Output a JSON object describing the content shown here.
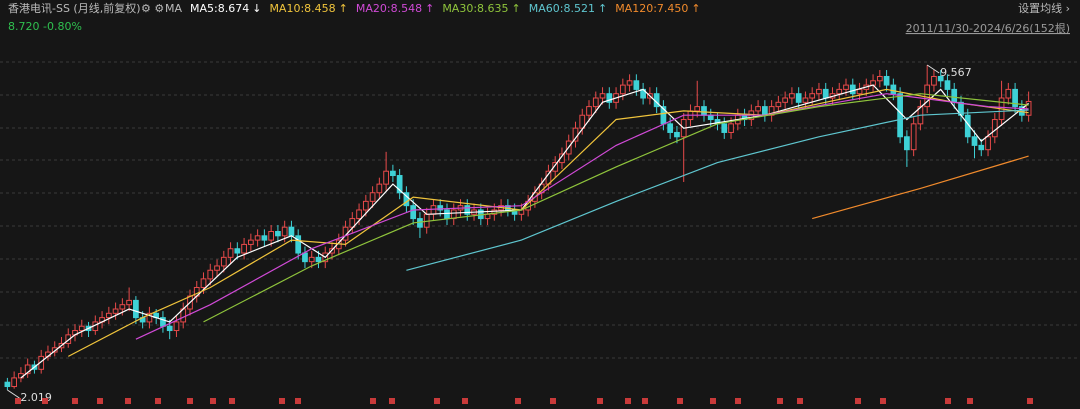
{
  "chart_data": {
    "type": "candlestick",
    "title": "香港电讯-SS (月线,前复权)",
    "indicator": "MA",
    "quote": "8.720 -0.80%",
    "range_text": "2011/11/30-2024/6/26(152根)",
    "settings_text": "设置均线 ›",
    "ylim": [
      1.578,
      11.076
    ],
    "annotations": [
      {
        "text": "9.567",
        "index": 136,
        "value": 9.567
      },
      {
        "text": "2.019",
        "index": 0,
        "value": 2.019
      }
    ],
    "up_color": "#e84a4a",
    "down_color": "#3ed1d6",
    "candles": [
      [
        2.2,
        2.3,
        2.019,
        2.1
      ],
      [
        2.1,
        2.45,
        2.05,
        2.3
      ],
      [
        2.3,
        2.55,
        2.2,
        2.4
      ],
      [
        2.4,
        2.75,
        2.3,
        2.6
      ],
      [
        2.6,
        2.7,
        2.4,
        2.5
      ],
      [
        2.5,
        2.95,
        2.4,
        2.8
      ],
      [
        2.8,
        3.05,
        2.7,
        2.9
      ],
      [
        2.9,
        3.15,
        2.8,
        3.0
      ],
      [
        3.0,
        3.25,
        2.9,
        3.1
      ],
      [
        3.1,
        3.45,
        3.0,
        3.3
      ],
      [
        3.3,
        3.55,
        3.15,
        3.4
      ],
      [
        3.4,
        3.65,
        3.25,
        3.5
      ],
      [
        3.5,
        3.6,
        3.25,
        3.4
      ],
      [
        3.4,
        3.75,
        3.3,
        3.6
      ],
      [
        3.6,
        3.85,
        3.45,
        3.7
      ],
      [
        3.7,
        3.95,
        3.55,
        3.8
      ],
      [
        3.8,
        4.05,
        3.65,
        3.9
      ],
      [
        3.9,
        4.15,
        3.75,
        4.0
      ],
      [
        4.0,
        4.4,
        3.85,
        4.1
      ],
      [
        4.1,
        4.2,
        3.55,
        3.7
      ],
      [
        3.7,
        3.85,
        3.45,
        3.6
      ],
      [
        3.6,
        3.95,
        3.45,
        3.8
      ],
      [
        3.8,
        3.9,
        3.55,
        3.7
      ],
      [
        3.7,
        3.85,
        3.35,
        3.5
      ],
      [
        3.5,
        3.65,
        3.2,
        3.4
      ],
      [
        3.4,
        3.75,
        3.25,
        3.6
      ],
      [
        3.6,
        4.05,
        3.45,
        3.9
      ],
      [
        3.9,
        4.35,
        3.75,
        4.2
      ],
      [
        4.2,
        4.55,
        4.05,
        4.4
      ],
      [
        4.4,
        4.75,
        4.25,
        4.6
      ],
      [
        4.6,
        4.95,
        4.45,
        4.8
      ],
      [
        4.8,
        5.05,
        4.65,
        4.9
      ],
      [
        4.9,
        5.25,
        4.75,
        5.1
      ],
      [
        5.1,
        5.45,
        4.95,
        5.3
      ],
      [
        5.3,
        5.45,
        5.05,
        5.2
      ],
      [
        5.2,
        5.55,
        5.05,
        5.4
      ],
      [
        5.4,
        5.65,
        5.25,
        5.5
      ],
      [
        5.5,
        5.75,
        5.35,
        5.6
      ],
      [
        5.6,
        5.75,
        5.35,
        5.5
      ],
      [
        5.5,
        5.85,
        5.35,
        5.7
      ],
      [
        5.7,
        5.85,
        5.45,
        5.6
      ],
      [
        5.6,
        5.95,
        5.45,
        5.8
      ],
      [
        5.8,
        5.95,
        5.45,
        5.6
      ],
      [
        5.6,
        5.75,
        5.05,
        5.2
      ],
      [
        5.2,
        5.35,
        4.85,
        5.0
      ],
      [
        5.0,
        5.25,
        4.85,
        5.1
      ],
      [
        5.1,
        5.25,
        4.85,
        5.0
      ],
      [
        5.0,
        5.35,
        4.85,
        5.2
      ],
      [
        5.2,
        5.45,
        5.05,
        5.3
      ],
      [
        5.3,
        5.65,
        5.15,
        5.5
      ],
      [
        5.5,
        5.95,
        5.35,
        5.8
      ],
      [
        5.8,
        6.15,
        5.65,
        6.0
      ],
      [
        6.0,
        6.35,
        5.85,
        6.2
      ],
      [
        6.2,
        6.55,
        6.05,
        6.4
      ],
      [
        6.4,
        6.75,
        6.25,
        6.6
      ],
      [
        6.6,
        6.95,
        6.45,
        6.8
      ],
      [
        6.8,
        7.55,
        6.65,
        7.1
      ],
      [
        7.1,
        7.25,
        6.85,
        7.0
      ],
      [
        7.0,
        7.15,
        6.45,
        6.6
      ],
      [
        6.6,
        6.75,
        6.15,
        6.3
      ],
      [
        6.3,
        6.45,
        5.85,
        6.0
      ],
      [
        6.0,
        6.15,
        5.55,
        5.8
      ],
      [
        5.8,
        6.25,
        5.65,
        6.1
      ],
      [
        6.1,
        6.45,
        5.95,
        6.3
      ],
      [
        6.3,
        6.45,
        6.05,
        6.2
      ],
      [
        6.2,
        6.35,
        5.85,
        6.0
      ],
      [
        6.0,
        6.35,
        5.85,
        6.2
      ],
      [
        6.2,
        6.45,
        6.05,
        6.3
      ],
      [
        6.3,
        6.45,
        5.95,
        6.1
      ],
      [
        6.1,
        6.35,
        5.95,
        6.2
      ],
      [
        6.2,
        6.35,
        5.85,
        6.0
      ],
      [
        6.0,
        6.25,
        5.85,
        6.1
      ],
      [
        6.1,
        6.35,
        5.95,
        6.2
      ],
      [
        6.2,
        6.45,
        6.05,
        6.3
      ],
      [
        6.3,
        6.45,
        6.05,
        6.2
      ],
      [
        6.2,
        6.35,
        5.95,
        6.1
      ],
      [
        6.1,
        6.35,
        5.95,
        6.2
      ],
      [
        6.2,
        6.55,
        6.05,
        6.4
      ],
      [
        6.4,
        6.75,
        6.25,
        6.6
      ],
      [
        6.6,
        6.95,
        6.45,
        6.8
      ],
      [
        6.8,
        7.25,
        6.65,
        7.1
      ],
      [
        7.1,
        7.45,
        6.95,
        7.3
      ],
      [
        7.3,
        7.65,
        7.15,
        7.5
      ],
      [
        7.5,
        7.95,
        7.35,
        7.8
      ],
      [
        7.8,
        8.25,
        7.65,
        8.1
      ],
      [
        8.1,
        8.55,
        7.95,
        8.4
      ],
      [
        8.4,
        8.75,
        8.25,
        8.6
      ],
      [
        8.6,
        8.95,
        8.45,
        8.8
      ],
      [
        8.8,
        9.05,
        8.65,
        8.9
      ],
      [
        8.9,
        9.05,
        8.55,
        8.7
      ],
      [
        8.7,
        9.05,
        8.55,
        8.9
      ],
      [
        8.9,
        9.25,
        8.75,
        9.1
      ],
      [
        9.1,
        9.35,
        8.95,
        9.2
      ],
      [
        9.2,
        9.35,
        8.85,
        9.0
      ],
      [
        9.0,
        9.15,
        8.65,
        8.8
      ],
      [
        8.8,
        9.05,
        8.65,
        8.9
      ],
      [
        8.9,
        9.05,
        8.45,
        8.6
      ],
      [
        8.6,
        8.75,
        8.05,
        8.2
      ],
      [
        8.2,
        8.35,
        7.85,
        8.0
      ],
      [
        8.0,
        8.15,
        7.75,
        7.9
      ],
      [
        7.9,
        8.45,
        6.85,
        8.3
      ],
      [
        8.3,
        8.65,
        8.15,
        8.5
      ],
      [
        8.5,
        9.2,
        8.35,
        8.6
      ],
      [
        8.6,
        8.75,
        8.25,
        8.4
      ],
      [
        8.4,
        8.55,
        8.15,
        8.3
      ],
      [
        8.3,
        8.45,
        8.05,
        8.2
      ],
      [
        8.2,
        8.35,
        7.85,
        8.0
      ],
      [
        8.0,
        8.35,
        7.85,
        8.2
      ],
      [
        8.2,
        8.55,
        8.05,
        8.4
      ],
      [
        8.4,
        8.55,
        8.15,
        8.3
      ],
      [
        8.3,
        8.65,
        8.15,
        8.5
      ],
      [
        8.5,
        8.75,
        8.35,
        8.6
      ],
      [
        8.6,
        8.75,
        8.25,
        8.4
      ],
      [
        8.4,
        8.75,
        8.25,
        8.6
      ],
      [
        8.6,
        8.85,
        8.45,
        8.7
      ],
      [
        8.7,
        8.95,
        8.55,
        8.8
      ],
      [
        8.8,
        9.05,
        8.65,
        8.9
      ],
      [
        8.9,
        9.05,
        8.55,
        8.7
      ],
      [
        8.7,
        8.95,
        8.55,
        8.8
      ],
      [
        8.8,
        9.05,
        8.65,
        8.9
      ],
      [
        8.9,
        9.15,
        8.75,
        9.0
      ],
      [
        9.0,
        9.15,
        8.65,
        8.8
      ],
      [
        8.8,
        9.05,
        8.65,
        8.9
      ],
      [
        8.9,
        9.15,
        8.75,
        9.0
      ],
      [
        9.0,
        9.25,
        8.85,
        9.1
      ],
      [
        9.1,
        9.25,
        8.75,
        8.9
      ],
      [
        8.9,
        9.15,
        8.75,
        9.0
      ],
      [
        9.0,
        9.25,
        8.85,
        9.1
      ],
      [
        9.1,
        9.35,
        8.95,
        9.2
      ],
      [
        9.2,
        9.45,
        9.05,
        9.3
      ],
      [
        9.3,
        9.45,
        8.95,
        9.1
      ],
      [
        9.1,
        9.25,
        8.75,
        8.9
      ],
      [
        8.9,
        9.05,
        7.75,
        7.9
      ],
      [
        7.9,
        8.05,
        7.2,
        7.6
      ],
      [
        7.6,
        8.35,
        7.45,
        8.2
      ],
      [
        8.2,
        8.75,
        8.05,
        8.6
      ],
      [
        8.6,
        9.567,
        8.45,
        9.1
      ],
      [
        9.1,
        9.45,
        8.95,
        9.3
      ],
      [
        9.3,
        9.45,
        9.05,
        9.2
      ],
      [
        9.2,
        9.35,
        8.85,
        9.0
      ],
      [
        9.0,
        9.15,
        8.55,
        8.7
      ],
      [
        8.7,
        8.85,
        8.25,
        8.4
      ],
      [
        8.4,
        8.55,
        7.75,
        7.9
      ],
      [
        7.9,
        8.05,
        7.4,
        7.7
      ],
      [
        7.7,
        7.85,
        7.45,
        7.6
      ],
      [
        7.6,
        8.05,
        7.45,
        7.9
      ],
      [
        7.9,
        8.45,
        7.75,
        8.3
      ],
      [
        8.3,
        9.2,
        8.15,
        8.8
      ],
      [
        8.8,
        9.15,
        8.65,
        9.0
      ],
      [
        9.0,
        9.15,
        8.45,
        8.6
      ],
      [
        8.6,
        8.75,
        8.25,
        8.4
      ],
      [
        8.4,
        8.95,
        8.25,
        8.72
      ]
    ],
    "series": [
      {
        "name": "MA5:8.674",
        "arrow": "↓",
        "color": "#ffffff",
        "x": [
          2,
          10,
          18,
          24,
          34,
          42,
          47,
          57,
          62,
          76,
          88,
          94,
          100,
          112,
          128,
          133,
          138,
          144,
          151
        ],
        "values": [
          2.3,
          3.3,
          3.9,
          3.6,
          5.1,
          5.6,
          5.1,
          6.8,
          6.1,
          6.2,
          8.7,
          9.0,
          8.1,
          8.4,
          9.1,
          8.3,
          9.0,
          7.8,
          8.674
        ]
      },
      {
        "name": "MA10:8.458",
        "arrow": "↑",
        "color": "#f0c43c",
        "x": [
          9,
          20,
          30,
          42,
          50,
          60,
          76,
          90,
          100,
          112,
          130,
          140,
          151
        ],
        "values": [
          2.8,
          3.7,
          4.4,
          5.5,
          5.4,
          6.5,
          6.2,
          8.3,
          8.5,
          8.4,
          9.0,
          8.7,
          8.458
        ]
      },
      {
        "name": "MA20:8.548",
        "arrow": "↑",
        "color": "#d04ad6",
        "x": [
          19,
          30,
          45,
          60,
          76,
          90,
          100,
          112,
          130,
          145,
          151
        ],
        "values": [
          3.2,
          4.0,
          5.3,
          6.2,
          6.3,
          7.7,
          8.4,
          8.4,
          8.9,
          8.6,
          8.548
        ]
      },
      {
        "name": "MA30:8.635",
        "arrow": "↑",
        "color": "#8fc43c",
        "x": [
          29,
          45,
          60,
          76,
          90,
          105,
          120,
          135,
          151
        ],
        "values": [
          3.6,
          4.9,
          5.9,
          6.2,
          7.2,
          8.2,
          8.6,
          8.9,
          8.635
        ]
      },
      {
        "name": "MA60:8.521",
        "arrow": "↑",
        "color": "#5fc6cf",
        "x": [
          59,
          76,
          90,
          105,
          120,
          135,
          151
        ],
        "values": [
          4.8,
          5.5,
          6.4,
          7.3,
          7.9,
          8.4,
          8.521
        ]
      },
      {
        "name": "MA120:7.450",
        "arrow": "↑",
        "color": "#f08a2c",
        "x": [
          119,
          135,
          151
        ],
        "values": [
          6.0,
          6.7,
          7.45
        ]
      }
    ]
  }
}
